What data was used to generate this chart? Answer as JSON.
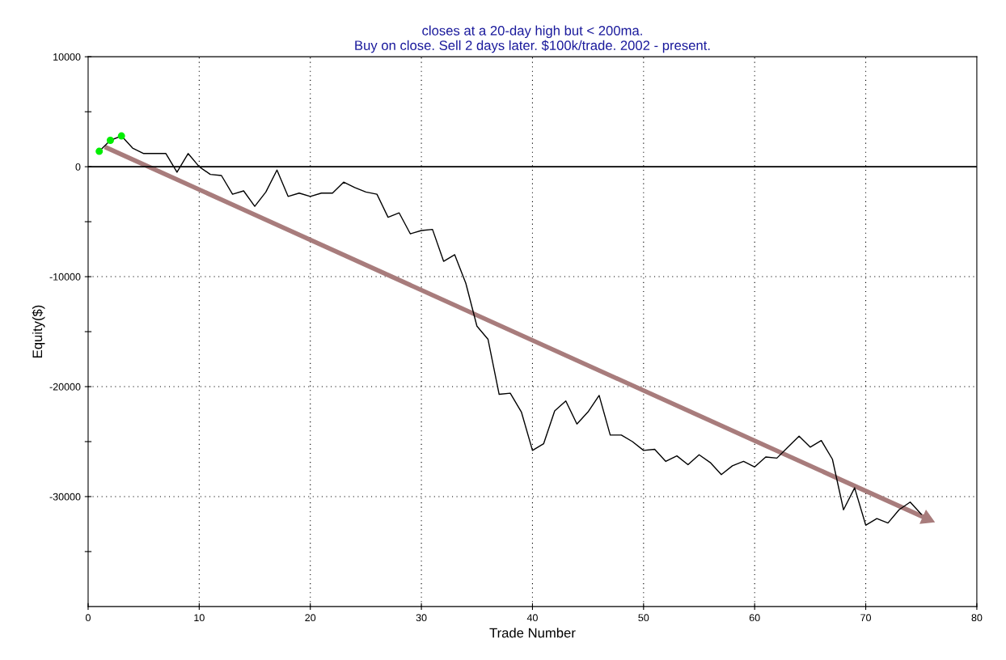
{
  "chart_data": {
    "type": "line",
    "title": "closes at a 20-day high but < 200ma.\nBuy on close. Sell 2 days later. $100k/trade. 2002 - present.",
    "xlabel": "Trade Number",
    "ylabel": "Equity($)",
    "series": [
      {
        "color": "#000000",
        "marker": "none",
        "x": [
          1,
          2,
          3,
          4,
          5,
          6,
          7,
          8,
          9,
          10,
          11,
          12,
          13,
          14,
          15,
          16,
          17,
          18,
          19,
          20,
          21,
          22,
          23,
          24,
          25,
          26,
          27,
          28,
          29,
          30,
          31,
          32,
          33,
          34,
          35,
          36,
          37,
          38,
          39,
          40,
          41,
          42,
          43,
          44,
          45,
          46,
          47,
          48,
          49,
          50,
          51,
          52,
          53,
          54,
          55,
          56,
          57,
          58,
          59,
          60,
          61,
          62,
          63,
          64,
          65,
          66,
          67,
          68,
          69,
          70,
          71,
          72,
          73,
          74,
          75
        ],
        "values": [
          1400,
          2400,
          2800,
          1700,
          1200,
          1200,
          1200,
          -500,
          1200,
          0,
          -700,
          -800,
          -2500,
          -2200,
          -3600,
          -2300,
          -300,
          -2700,
          -2400,
          -2700,
          -2400,
          -2400,
          -1400,
          -1900,
          -2300,
          -2500,
          -4600,
          -4200,
          -6100,
          -5800,
          -5700,
          -8600,
          -8000,
          -10600,
          -14500,
          -15700,
          -20700,
          -20600,
          -22300,
          -25800,
          -25200,
          -22200,
          -21300,
          -23400,
          -22300,
          -20800,
          -24400,
          -24400,
          -25000,
          -25800,
          -25700,
          -26800,
          -26300,
          -27100,
          -26200,
          -26900,
          -28000,
          -27200,
          -26800,
          -27300,
          -26400,
          -26500,
          -25500,
          -24500,
          -25500,
          -24900,
          -26600,
          -31200,
          -29200,
          -32600,
          -32000,
          -32400,
          -31200,
          -30500,
          -31600
        ]
      },
      {
        "type": "line",
        "color": "#a87c7c",
        "marker": "triangle",
        "x": [
          1.5,
          75.5
        ],
        "values": [
          1800,
          -32000
        ]
      },
      {
        "type": "scatter",
        "color": "#00ee00",
        "marker": "circle",
        "x": [
          1,
          2,
          3
        ],
        "values": [
          1400,
          2400,
          2800
        ]
      }
    ],
    "xlim": [
      0,
      80
    ],
    "xticks": [
      0,
      10,
      20,
      30,
      40,
      50,
      60,
      70,
      80
    ],
    "ylim": [
      -40000,
      10000
    ],
    "yticks": [
      {
        "value": -35000,
        "label": null
      },
      -30000,
      {
        "value": -25000,
        "label": null
      },
      -20000,
      {
        "value": -15000,
        "label": null
      },
      -10000,
      {
        "value": -5000,
        "label": null
      },
      0,
      {
        "value": 5000,
        "label": null
      },
      10000
    ],
    "grid": true,
    "ref_lines": [
      {
        "axis": "y",
        "value": 0,
        "color": "#000000",
        "line_style": "solid"
      }
    ]
  }
}
